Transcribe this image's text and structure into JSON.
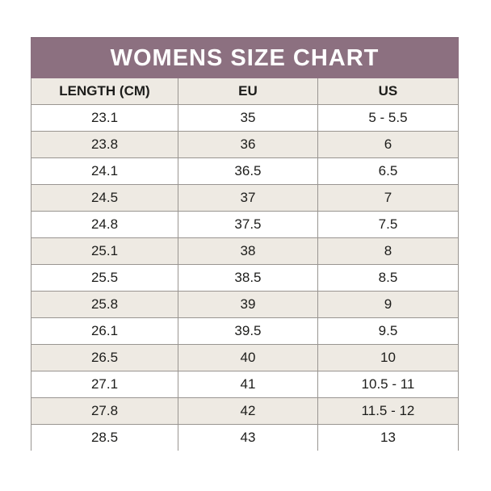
{
  "colors": {
    "page_bg": "#ffffff",
    "header_bg": "#8c7080",
    "header_text": "#ffffff",
    "row_bg": "#ffffff",
    "row_alt_bg": "#eeeae3",
    "border": "#999591",
    "text": "#1d1d1b"
  },
  "chart_data": {
    "type": "table",
    "title": "WOMENS SIZE CHART",
    "columns": [
      "LENGTH (CM)",
      "EU",
      "US"
    ],
    "rows": [
      [
        "23.1",
        "35",
        "5 - 5.5"
      ],
      [
        "23.8",
        "36",
        "6"
      ],
      [
        "24.1",
        "36.5",
        "6.5"
      ],
      [
        "24.5",
        "37",
        "7"
      ],
      [
        "24.8",
        "37.5",
        "7.5"
      ],
      [
        "25.1",
        "38",
        "8"
      ],
      [
        "25.5",
        "38.5",
        "8.5"
      ],
      [
        "25.8",
        "39",
        "9"
      ],
      [
        "26.1",
        "39.5",
        "9.5"
      ],
      [
        "26.5",
        "40",
        "10"
      ],
      [
        "27.1",
        "41",
        "10.5 - 11"
      ],
      [
        "27.8",
        "42",
        "11.5 - 12"
      ],
      [
        "28.5",
        "43",
        "13"
      ]
    ]
  }
}
